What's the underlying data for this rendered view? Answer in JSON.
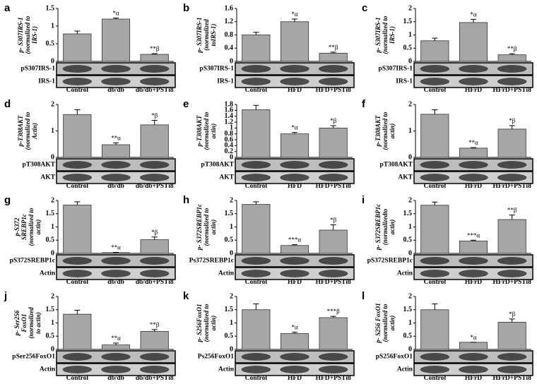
{
  "chart_data": [
    {
      "type": "bar",
      "panel": "a",
      "ylabel": [
        "p- S307IRS-1",
        "(normalized to",
        "IRS-1)"
      ],
      "categories": [
        "Control",
        "db/db",
        "db/db+PSTi8"
      ],
      "values": [
        0.78,
        1.2,
        0.2
      ],
      "error": [
        0.08,
        0.03,
        0.02
      ],
      "annotations": [
        null,
        "*α",
        "**β"
      ],
      "blot_labels": [
        "pS307IRS-1",
        "IRS-1"
      ],
      "ylim": [
        0,
        1.5
      ],
      "yticks": [
        0,
        0.5,
        1,
        1.5
      ],
      "color": "#a6a6a6"
    },
    {
      "type": "bar",
      "panel": "b",
      "ylabel": [
        "p- S307IRS-1",
        "(normalized",
        "toIRS-1)"
      ],
      "categories": [
        "Control",
        "HFD",
        "HFD+PSTi8"
      ],
      "values": [
        0.8,
        1.2,
        0.25
      ],
      "error": [
        0.08,
        0.08,
        0.03
      ],
      "annotations": [
        null,
        "*α",
        "**β"
      ],
      "blot_labels": [
        "pS307IRS-1",
        "IRS-1"
      ],
      "ylim": [
        0,
        1.6
      ],
      "yticks": [
        0,
        0.4,
        0.8,
        1.2,
        1.6
      ],
      "color": "#a6a6a6"
    },
    {
      "type": "bar",
      "panel": "c",
      "ylabel": [
        "p- S307IRS-1",
        "(normalized to",
        "IRS-1)"
      ],
      "categories": [
        "Control",
        "HFrD",
        "HFrD+PSTi8"
      ],
      "values": [
        0.78,
        1.47,
        0.25
      ],
      "error": [
        0.1,
        0.12,
        0.04
      ],
      "annotations": [
        null,
        "*α",
        "**β"
      ],
      "blot_labels": [
        "pS307IRS-1",
        "IRS-1"
      ],
      "ylim": [
        0,
        2
      ],
      "yticks": [
        0,
        0.5,
        1,
        1.5,
        2
      ],
      "color": "#a6a6a6"
    },
    {
      "type": "bar",
      "panel": "d",
      "ylabel": [
        "p-T308AKT",
        "(normalized to",
        "Actin)"
      ],
      "categories": [
        "Control",
        "db/db",
        "db/db+PSTi8"
      ],
      "values": [
        1.62,
        0.48,
        1.23
      ],
      "error": [
        0.18,
        0.07,
        0.17
      ],
      "annotations": [
        null,
        "**α",
        "*β"
      ],
      "blot_labels": [
        "pT308AKT",
        "AKT"
      ],
      "ylim": [
        0,
        2
      ],
      "yticks": [
        0,
        1,
        2
      ],
      "color": "#a6a6a6"
    },
    {
      "type": "bar",
      "panel": "e",
      "ylabel": [
        "p-T308AKT",
        "(normalized to",
        "actin)"
      ],
      "categories": [
        "Control",
        "HFD",
        "HFD+PSTi8"
      ],
      "values": [
        1.62,
        0.8,
        1.0
      ],
      "error": [
        0.15,
        0.05,
        0.08
      ],
      "annotations": [
        null,
        "*α",
        "*β"
      ],
      "blot_labels": [
        "pT308AKT",
        "AKT"
      ],
      "ylim": [
        0,
        1.8
      ],
      "yticks": [
        0,
        0.2,
        0.4,
        0.6,
        0.8,
        1,
        1.2,
        1.4,
        1.6,
        1.8
      ],
      "color": "#a6a6a6"
    },
    {
      "type": "bar",
      "panel": "f",
      "ylabel": [
        "p-T308AKT",
        "(normalized to",
        "actin)"
      ],
      "categories": [
        "Control",
        "HFrD",
        "HFrD+PSTi8"
      ],
      "values": [
        1.63,
        0.35,
        1.07
      ],
      "error": [
        0.17,
        0.02,
        0.13
      ],
      "annotations": [
        null,
        "**α",
        "*β"
      ],
      "blot_labels": [
        "pT308AKT",
        "AKT"
      ],
      "ylim": [
        0,
        2
      ],
      "yticks": [
        0,
        1,
        2
      ],
      "color": "#a6a6a6"
    },
    {
      "type": "bar",
      "panel": "g",
      "ylabel": [
        "p-S372",
        "SREBP1c",
        "(normalized to",
        "actin)"
      ],
      "categories": [
        "Control",
        "db/db",
        "db/db+PSTi8"
      ],
      "values": [
        1.83,
        0.03,
        0.52
      ],
      "error": [
        0.12,
        0.01,
        0.1
      ],
      "annotations": [
        null,
        "**α",
        "*β"
      ],
      "blot_labels": [
        "pS372SREBP1c",
        "Actin"
      ],
      "ylim": [
        0,
        2
      ],
      "yticks": [
        0,
        0.5,
        1,
        1.5,
        2
      ],
      "color": "#a6a6a6"
    },
    {
      "type": "bar",
      "panel": "h",
      "ylabel": [
        "p- S372SREBP1c",
        "(normalized to",
        "actin)"
      ],
      "categories": [
        "Control",
        "HFD",
        "HFD+PSTi8"
      ],
      "values": [
        1.85,
        0.3,
        0.88
      ],
      "error": [
        0.1,
        0.03,
        0.2
      ],
      "annotations": [
        null,
        "***α",
        "*β"
      ],
      "blot_labels": [
        "Ps372SREBP1c",
        "Actin"
      ],
      "ylim": [
        0,
        2
      ],
      "yticks": [
        0,
        0.5,
        1,
        1.5,
        2
      ],
      "color": "#a6a6a6"
    },
    {
      "type": "bar",
      "panel": "i",
      "ylabel": [
        "p- S372SREBP1c",
        "(normalizedto",
        "actin)"
      ],
      "categories": [
        "Control",
        "HFrD",
        "HFrD+PSTi8"
      ],
      "values": [
        1.82,
        0.47,
        1.28
      ],
      "error": [
        0.12,
        0.03,
        0.17
      ],
      "annotations": [
        null,
        "***α",
        "**β"
      ],
      "blot_labels": [
        "pS372SREBP1c",
        "Actin"
      ],
      "ylim": [
        0,
        2
      ],
      "yticks": [
        0,
        0.5,
        1,
        1.5,
        2
      ],
      "color": "#a6a6a6"
    },
    {
      "type": "bar",
      "panel": "j",
      "ylabel": [
        "p- Ser256",
        "FoxO1",
        "(normalized",
        "to actin)"
      ],
      "categories": [
        "Control",
        "db/db",
        "db/db+PSTi8"
      ],
      "values": [
        1.33,
        0.17,
        0.68
      ],
      "error": [
        0.15,
        0.07,
        0.07
      ],
      "annotations": [
        null,
        "**α",
        "**β"
      ],
      "blot_labels": [
        "pSer256FoxO1",
        "Actin"
      ],
      "ylim": [
        0,
        2
      ],
      "yticks": [
        0,
        0.5,
        1,
        1.5,
        2
      ],
      "color": "#a6a6a6"
    },
    {
      "type": "bar",
      "panel": "k",
      "ylabel": [
        "p- S256FoxO1",
        "(normalized to",
        "actin)"
      ],
      "categories": [
        "Control",
        "HFD",
        "HFD+PSTi8"
      ],
      "values": [
        1.5,
        0.6,
        1.2
      ],
      "error": [
        0.22,
        0.05,
        0.05
      ],
      "annotations": [
        null,
        "*α",
        "***β"
      ],
      "blot_labels": [
        "Ps256FoxO1",
        "Actin"
      ],
      "ylim": [
        0,
        2
      ],
      "yticks": [
        0,
        0.5,
        1,
        1.5,
        2
      ],
      "color": "#a6a6a6"
    },
    {
      "type": "bar",
      "panel": "l",
      "ylabel": [
        "p- S256 FoxO1",
        "(normalized to",
        "actin)"
      ],
      "categories": [
        "Control",
        "HFrD",
        "HFrD+PSTi8"
      ],
      "values": [
        1.5,
        0.27,
        1.03
      ],
      "error": [
        0.22,
        0,
        0.12
      ],
      "annotations": [
        null,
        "*α",
        "*β"
      ],
      "blot_labels": [
        "pS256FoxO1",
        "Actin"
      ],
      "ylim": [
        0,
        2
      ],
      "yticks": [
        0,
        0.5,
        1,
        1.5,
        2
      ],
      "color": "#a6a6a6"
    }
  ]
}
